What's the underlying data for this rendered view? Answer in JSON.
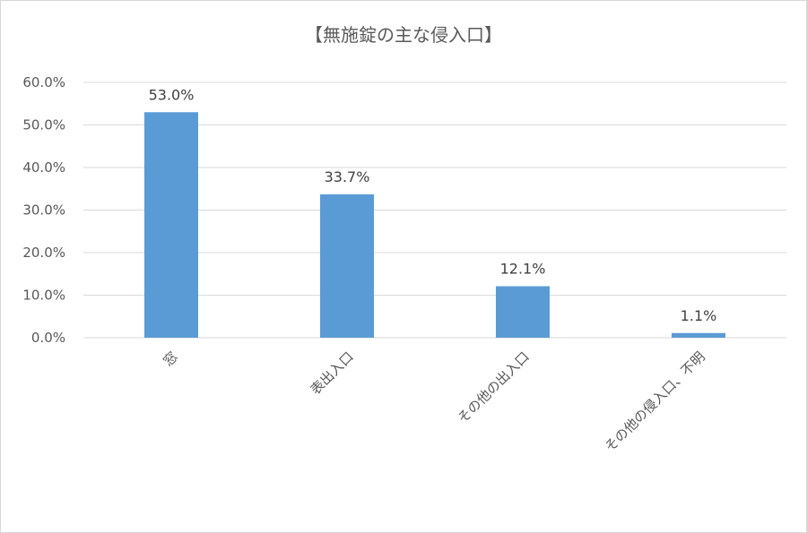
{
  "chart_data": {
    "type": "bar",
    "title": "【無施錠の主な侵入口】",
    "categories": [
      "窓",
      "表出入口",
      "その他の出入口",
      "その他の侵入口、不明"
    ],
    "values": [
      53.0,
      33.7,
      12.1,
      1.1
    ],
    "data_labels": [
      "53.0%",
      "33.7%",
      "12.1%",
      "1.1%"
    ],
    "yticks": [
      0,
      10,
      20,
      30,
      40,
      50,
      60
    ],
    "ytick_labels": [
      "0.0%",
      "10.0%",
      "20.0%",
      "30.0%",
      "40.0%",
      "50.0%",
      "60.0%"
    ],
    "ylim": [
      0,
      60
    ],
    "grid": true,
    "legend": "none",
    "bar_color": "#5b9bd5",
    "grid_color": "#d9d9d9"
  }
}
